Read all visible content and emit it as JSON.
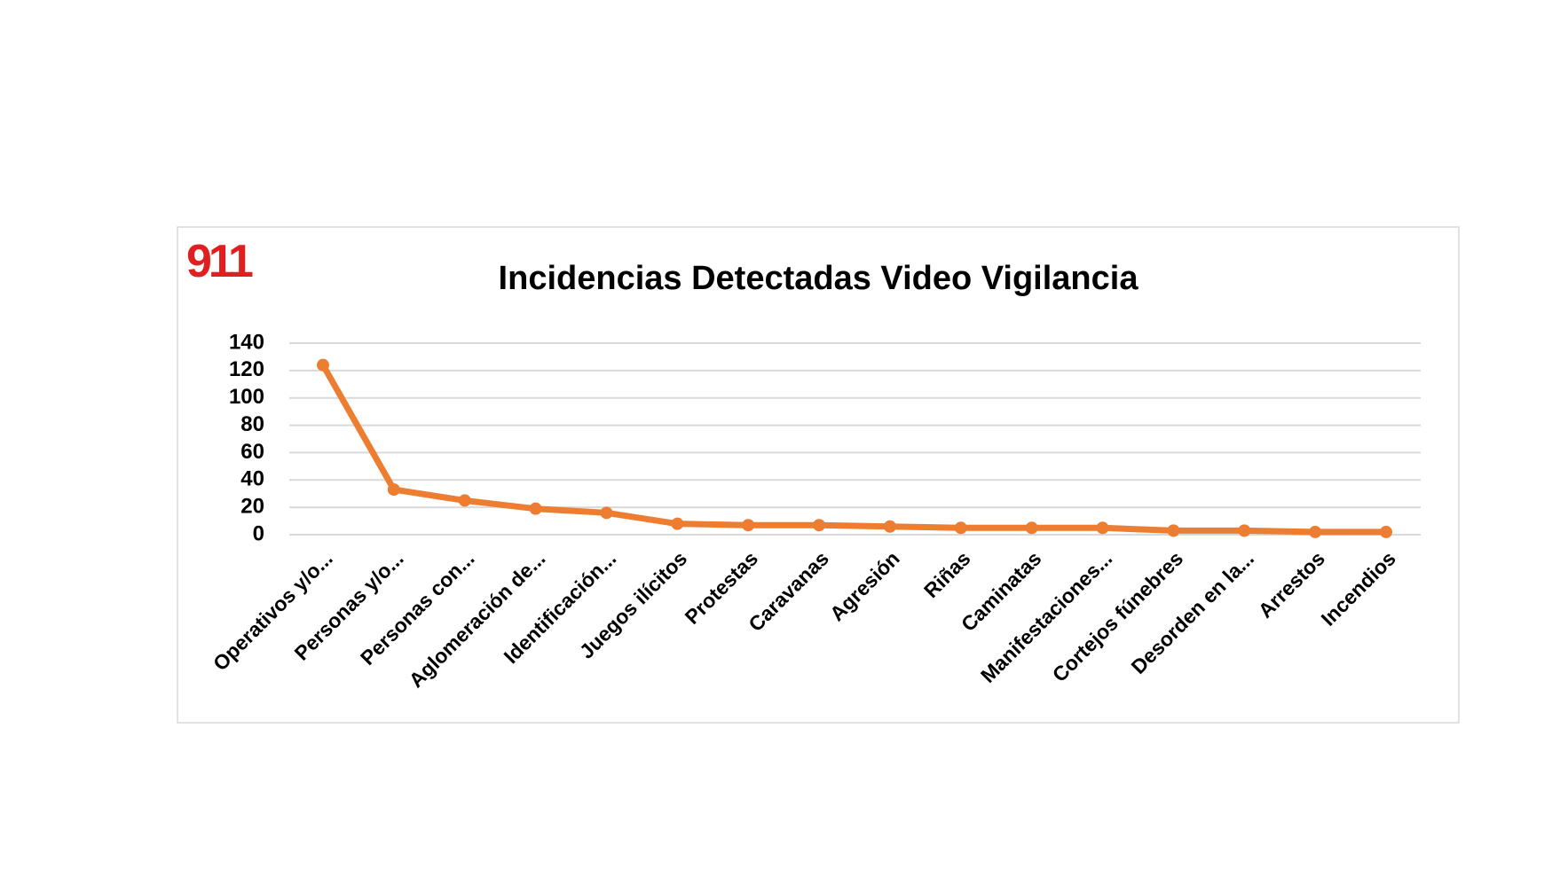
{
  "logo": "911",
  "chart_data": {
    "type": "line",
    "title": "Incidencias Detectadas Video Vigilancia",
    "categories": [
      "Operativos y/o...",
      "Personas y/o...",
      "Personas con...",
      "Aglomeración de...",
      "Identificación...",
      "Juegos ilícitos",
      "Protestas",
      "Caravanas",
      "Agresión",
      "Riñas",
      "Caminatas",
      "Manifestaciones...",
      "Cortejos fúnebres",
      "Desorden en la...",
      "Arrestos",
      "Incendios"
    ],
    "series": [
      {
        "name": "Incidencias",
        "color": "#ed7d31",
        "values": [
          124,
          33,
          25,
          19,
          16,
          8,
          7,
          7,
          6,
          5,
          5,
          5,
          3,
          3,
          2,
          2
        ]
      }
    ],
    "ylim": [
      0,
      140
    ],
    "yticks": [
      0,
      20,
      40,
      60,
      80,
      100,
      120,
      140
    ],
    "grid": true
  }
}
